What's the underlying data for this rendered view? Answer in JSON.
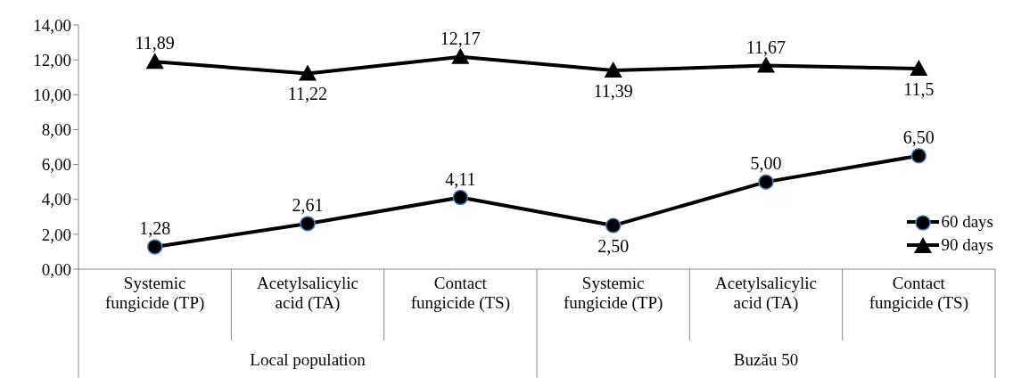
{
  "chart_data": {
    "type": "line",
    "categories": [
      "Systemic fungicide (TP)",
      "Acetylsalicylic acid (TA)",
      "Contact fungicide (TS)",
      "Systemic fungicide (TP)",
      "Acetylsalicylic acid (TA)",
      "Contact fungicide (TS)"
    ],
    "series": [
      {
        "name": "60 days",
        "color": "#000000",
        "marker": "circle",
        "values": [
          1.28,
          2.61,
          4.11,
          2.5,
          5.0,
          6.5
        ],
        "value_labels": [
          "1,28",
          "2,61",
          "4,11",
          "2,50",
          "5,00",
          "6,50"
        ]
      },
      {
        "name": "90 days",
        "color": "#000000",
        "marker": "triangle",
        "values": [
          11.89,
          11.22,
          12.17,
          11.39,
          11.67,
          11.5
        ],
        "value_labels": [
          "11,89",
          "11,22",
          "12,17",
          "11,39",
          "11,67",
          "11,5"
        ]
      }
    ],
    "ylim": [
      0,
      14
    ],
    "yticks": [
      {
        "value": 0,
        "label": "0,00"
      },
      {
        "value": 2,
        "label": "2,00"
      },
      {
        "value": 4,
        "label": "4,00"
      },
      {
        "value": 6,
        "label": "6,00"
      },
      {
        "value": 8,
        "label": "8,00"
      },
      {
        "value": 10,
        "label": "10,00"
      },
      {
        "value": 12,
        "label": "12,00"
      },
      {
        "value": 14,
        "label": "14,00"
      }
    ],
    "annotations": [
      "Local population",
      "Buzău 50"
    ],
    "legend": "right",
    "line_style": "solid"
  }
}
